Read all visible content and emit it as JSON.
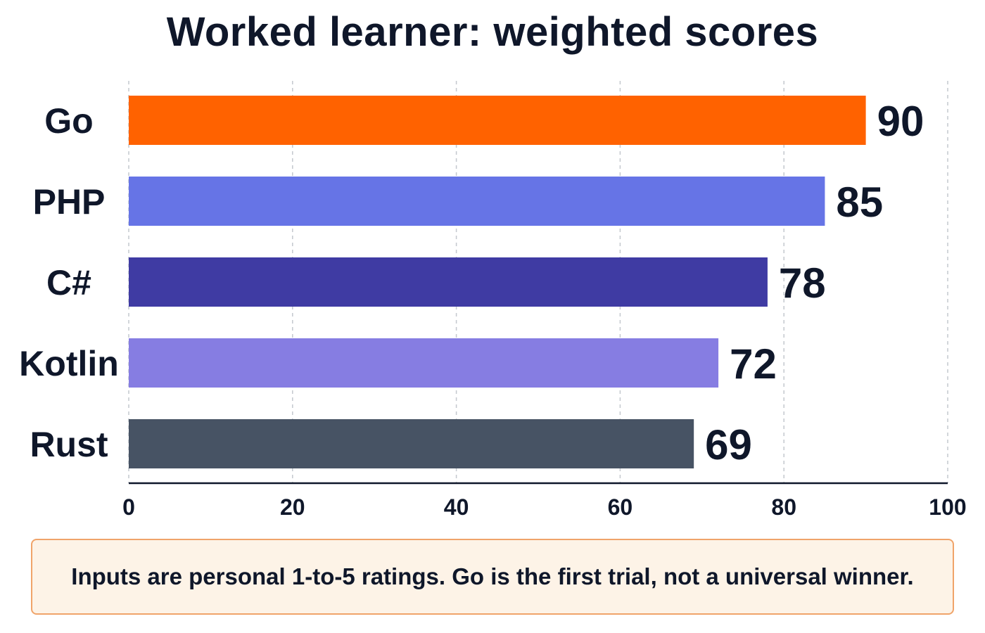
{
  "chart_data": {
    "type": "bar",
    "orientation": "horizontal",
    "title": "Worked learner: weighted scores",
    "xlabel": "",
    "ylabel": "",
    "categories": [
      "Go",
      "PHP",
      "C#",
      "Kotlin",
      "Rust"
    ],
    "values": [
      90,
      85,
      78,
      72,
      69
    ],
    "colors": [
      "#ff6200",
      "#6674e6",
      "#3f3ba3",
      "#867de2",
      "#475364"
    ],
    "xlim": [
      0,
      100
    ],
    "xticks": [
      "0",
      "20",
      "40",
      "60",
      "80",
      "100"
    ],
    "grid": "vertical dashed",
    "legend": "none"
  },
  "note": {
    "text": "Inputs are personal 1-to-5 ratings. Go is the first trial, not a universal winner."
  },
  "colors": {
    "title": "#0f172a",
    "note_background": "#fdf3e7",
    "note_border": "#f0a46a"
  }
}
